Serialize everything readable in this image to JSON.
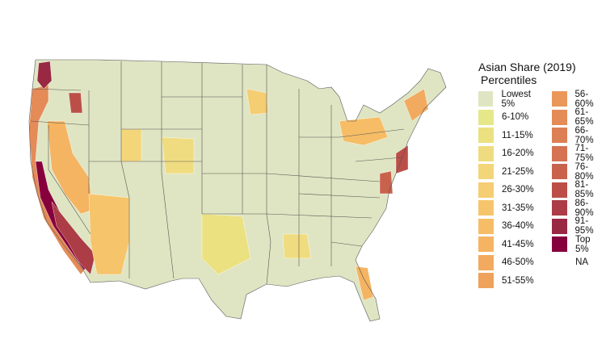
{
  "legend": {
    "title_line1": "Asian Share (2019)",
    "title_line2": "Percentiles",
    "items": [
      {
        "label": "Lowest 5%",
        "color": "#dfe5c2"
      },
      {
        "label": "6-10%",
        "color": "#e6e788"
      },
      {
        "label": "11-15%",
        "color": "#ebe180"
      },
      {
        "label": "16-20%",
        "color": "#f0dc80"
      },
      {
        "label": "21-25%",
        "color": "#f3d57a"
      },
      {
        "label": "26-30%",
        "color": "#f5cd72"
      },
      {
        "label": "31-35%",
        "color": "#f6c56b"
      },
      {
        "label": "36-40%",
        "color": "#f6bd66"
      },
      {
        "label": "41-45%",
        "color": "#f4b462"
      },
      {
        "label": "46-50%",
        "color": "#f1aa5f"
      },
      {
        "label": "51-55%",
        "color": "#eea25c"
      },
      {
        "label": "56-60%",
        "color": "#ea975a"
      },
      {
        "label": "61-65%",
        "color": "#e48b58"
      },
      {
        "label": "66-70%",
        "color": "#dd7f55"
      },
      {
        "label": "71-75%",
        "color": "#d57252"
      },
      {
        "label": "76-80%",
        "color": "#c9624d"
      },
      {
        "label": "81-85%",
        "color": "#bb4f48"
      },
      {
        "label": "86-90%",
        "color": "#ac3c45"
      },
      {
        "label": "91-95%",
        "color": "#992843"
      },
      {
        "label": "Top 5%",
        "color": "#86003c"
      },
      {
        "label": "NA",
        "color": "#ffffff"
      }
    ]
  }
}
